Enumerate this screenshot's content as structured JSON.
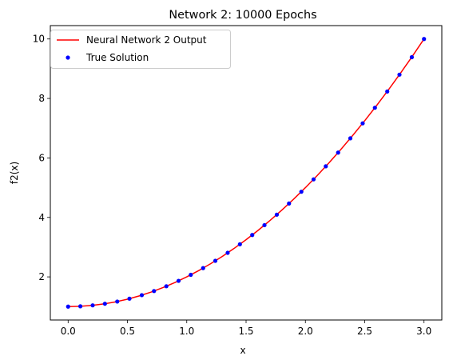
{
  "chart_data": {
    "type": "line",
    "title": "Network 2: 10000 Epochs",
    "xlabel": "x",
    "ylabel": "f2(x)",
    "xlim": [
      -0.15,
      3.15
    ],
    "ylim": [
      0.55,
      10.45
    ],
    "xticks": [
      0.0,
      0.5,
      1.0,
      1.5,
      2.0,
      2.5,
      3.0
    ],
    "xtick_labels": [
      "0.0",
      "0.5",
      "1.0",
      "1.5",
      "2.0",
      "2.5",
      "3.0"
    ],
    "yticks": [
      2,
      4,
      6,
      8,
      10
    ],
    "ytick_labels": [
      "2",
      "4",
      "6",
      "8",
      "10"
    ],
    "grid": false,
    "legend_position": "upper-left",
    "series": [
      {
        "name": "Neural Network 2 Output",
        "style": "line",
        "color": "#ff0000",
        "x": [
          0.0,
          0.1,
          0.2,
          0.3,
          0.4,
          0.5,
          0.6,
          0.7,
          0.8,
          0.9,
          1.0,
          1.1,
          1.2,
          1.3,
          1.4,
          1.5,
          1.6,
          1.7,
          1.8,
          1.9,
          2.0,
          2.1,
          2.2,
          2.3,
          2.4,
          2.5,
          2.6,
          2.7,
          2.8,
          2.9,
          3.0
        ],
        "y": [
          1.0,
          1.01,
          1.04,
          1.09,
          1.16,
          1.25,
          1.36,
          1.49,
          1.64,
          1.81,
          2.0,
          2.21,
          2.44,
          2.69,
          2.96,
          3.25,
          3.56,
          3.89,
          4.24,
          4.61,
          5.0,
          5.41,
          5.84,
          6.29,
          6.76,
          7.25,
          7.76,
          8.29,
          8.84,
          9.41,
          10.0
        ]
      },
      {
        "name": "True Solution",
        "style": "points",
        "color": "#0000ff",
        "x": [
          0.0,
          0.103,
          0.207,
          0.31,
          0.414,
          0.517,
          0.621,
          0.724,
          0.828,
          0.931,
          1.034,
          1.138,
          1.241,
          1.345,
          1.448,
          1.552,
          1.655,
          1.759,
          1.862,
          1.966,
          2.069,
          2.172,
          2.276,
          2.379,
          2.483,
          2.586,
          2.69,
          2.793,
          2.897,
          3.0
        ],
        "y": [
          1.0,
          1.011,
          1.043,
          1.096,
          1.171,
          1.268,
          1.385,
          1.524,
          1.685,
          1.867,
          2.07,
          2.295,
          2.541,
          2.809,
          3.097,
          3.408,
          3.739,
          4.092,
          4.467,
          4.863,
          5.28,
          5.719,
          6.179,
          6.66,
          7.163,
          7.687,
          8.233,
          8.8,
          9.388,
          10.0
        ]
      }
    ]
  }
}
